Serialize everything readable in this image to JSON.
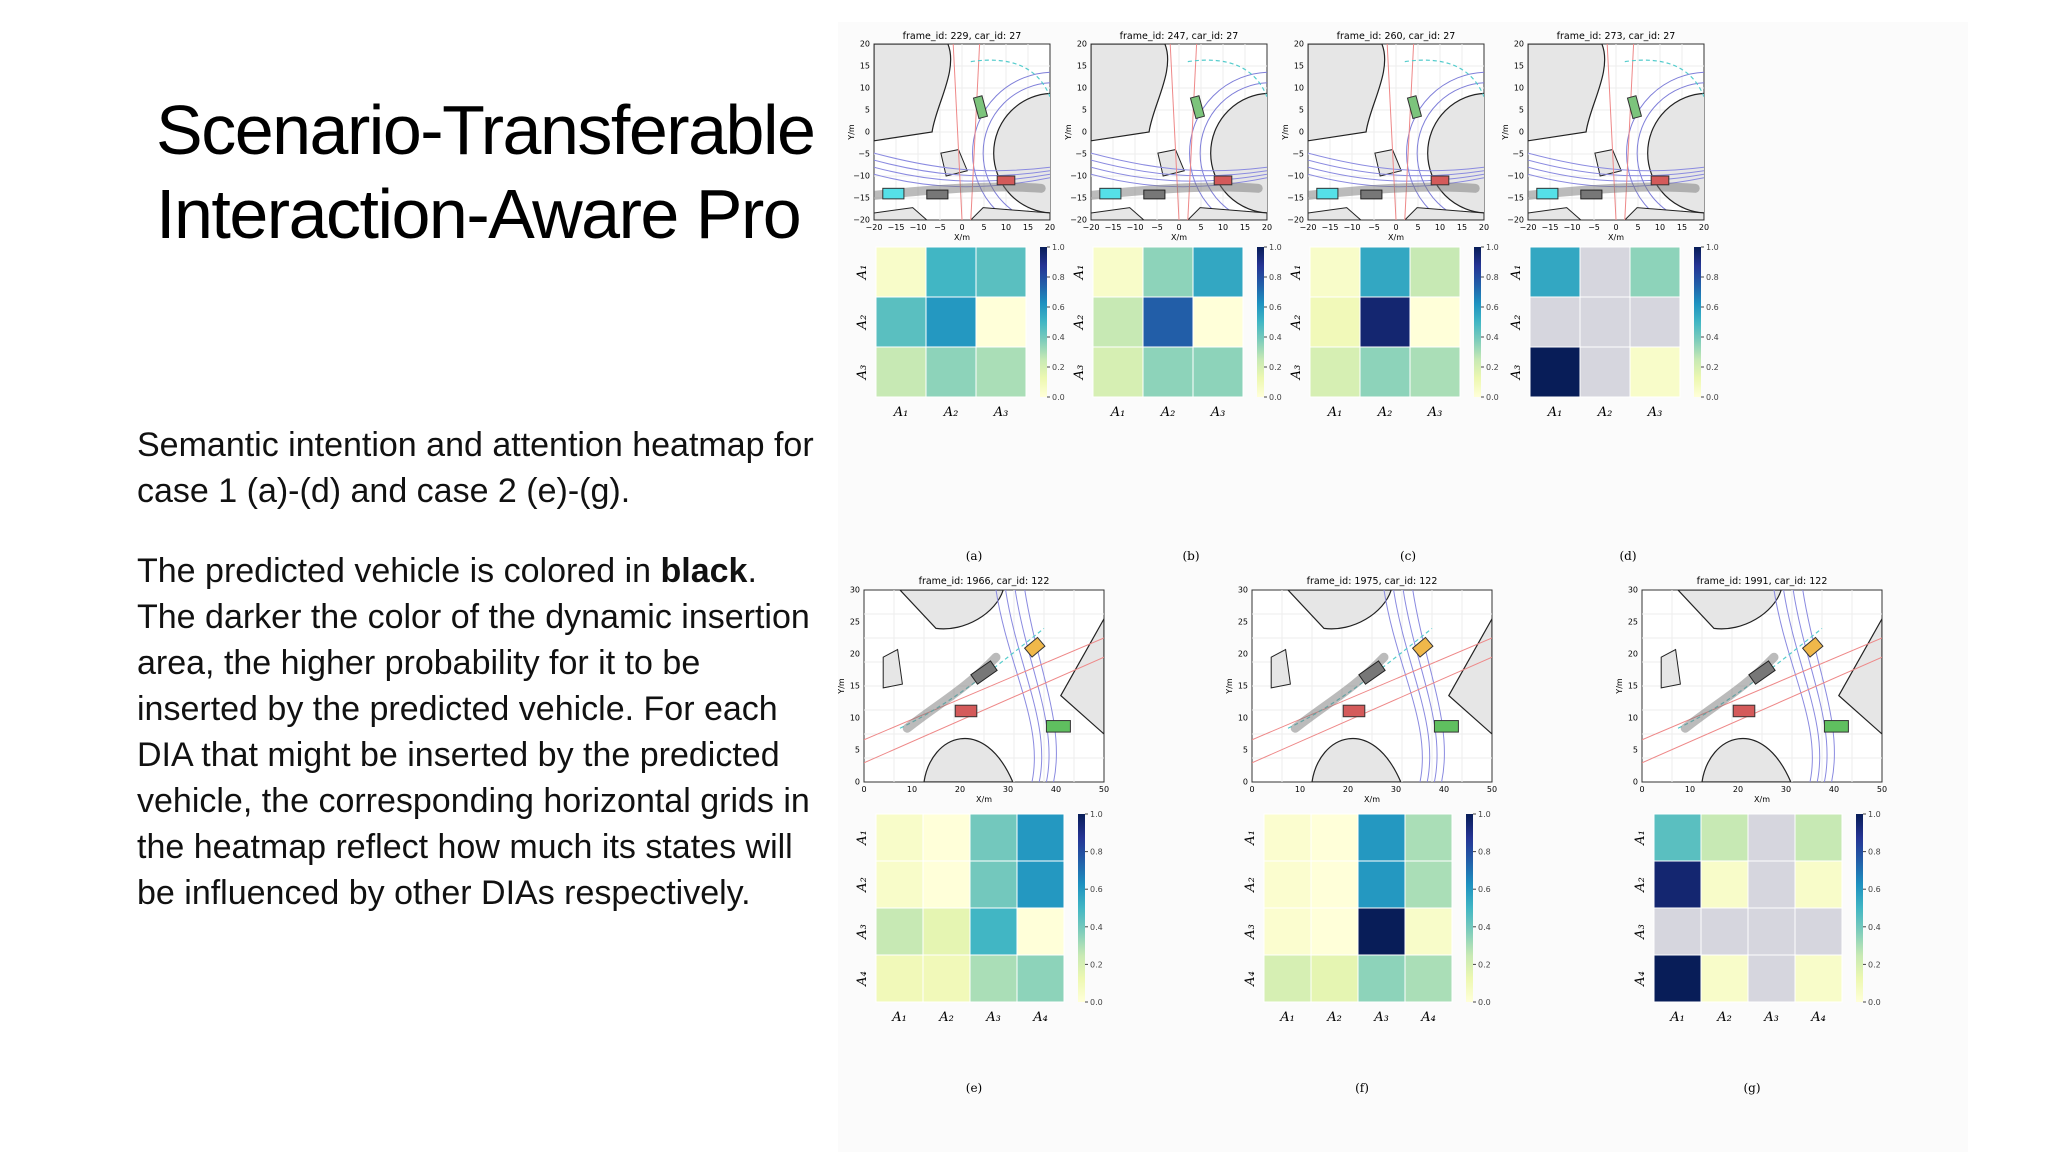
{
  "slide": {
    "title_line1": "Scenario-Transferable",
    "title_line2": "Interaction-Aware Pro",
    "para1": "Semantic intention and attention heatmap for case 1 (a)-(d) and case 2 (e)-(g).",
    "para2_a": "The predicted vehicle is colored in ",
    "para2_bold": "black",
    "para2_b": ". The darker the color of the dynamic insertion area, the higher probability for it to be inserted by the predicted vehicle. For each DIA that might be inserted by the predicted vehicle, the corresponding horizontal grids in the heatmap reflect how much its states will be influenced by other DIAs respectively."
  },
  "colorbar_ticks": [
    "0.0",
    "0.2",
    "0.4",
    "0.6",
    "0.8",
    "1.0"
  ],
  "axis_units": {
    "x": "X/m",
    "y": "Y/m"
  },
  "case1": {
    "x_ticks": [
      "−20",
      "−15",
      "−10",
      "−5",
      "0",
      "5",
      "10",
      "15",
      "20"
    ],
    "y_ticks": [
      "20",
      "15",
      "10",
      "5",
      "0",
      "−5",
      "−10",
      "−15",
      "−20"
    ],
    "panels": [
      {
        "frame_title": "frame_id: 229, car_id: 27",
        "caption": "(a)"
      },
      {
        "frame_title": "frame_id: 247, car_id: 27",
        "caption": "(b)"
      },
      {
        "frame_title": "frame_id: 260, car_id: 27",
        "caption": "(c)"
      },
      {
        "frame_title": "frame_id: 273, car_id: 27",
        "caption": "(d)"
      }
    ],
    "labels": [
      "A₁",
      "A₂",
      "A₃"
    ]
  },
  "case2": {
    "x_ticks": [
      "0",
      "10",
      "20",
      "30",
      "40",
      "50"
    ],
    "y_ticks": [
      "30",
      "25",
      "20",
      "15",
      "10",
      "5",
      "0"
    ],
    "panels": [
      {
        "frame_title": "frame_id: 1966, car_id: 122",
        "caption": "(e)"
      },
      {
        "frame_title": "frame_id: 1975, car_id: 122",
        "caption": "(f)"
      },
      {
        "frame_title": "frame_id: 1991, car_id: 122",
        "caption": "(g)"
      }
    ],
    "labels": [
      "A₁",
      "A₂",
      "A₃",
      "A₄"
    ]
  },
  "chart_data": [
    {
      "type": "heatmap",
      "caption": "(a)",
      "rows": [
        "A₁",
        "A₂",
        "A₃"
      ],
      "cols": [
        "A₁",
        "A₂",
        "A₃"
      ],
      "values": [
        [
          0.05,
          0.5,
          0.45
        ],
        [
          0.45,
          0.6,
          0.0
        ],
        [
          0.25,
          0.35,
          0.3
        ]
      ],
      "colorbar": [
        0.0,
        1.0
      ]
    },
    {
      "type": "heatmap",
      "caption": "(b)",
      "rows": [
        "A₁",
        "A₂",
        "A₃"
      ],
      "cols": [
        "A₁",
        "A₂",
        "A₃"
      ],
      "values": [
        [
          0.05,
          0.35,
          0.55
        ],
        [
          0.25,
          0.75,
          0.0
        ],
        [
          0.2,
          0.35,
          0.35
        ]
      ],
      "colorbar": [
        0.0,
        1.0
      ]
    },
    {
      "type": "heatmap",
      "caption": "(c)",
      "rows": [
        "A₁",
        "A₂",
        "A₃"
      ],
      "cols": [
        "A₁",
        "A₂",
        "A₃"
      ],
      "values": [
        [
          0.05,
          0.55,
          0.25
        ],
        [
          0.1,
          0.95,
          0.0
        ],
        [
          0.2,
          0.35,
          0.3
        ]
      ],
      "colorbar": [
        0.0,
        1.0
      ]
    },
    {
      "type": "heatmap",
      "caption": "(d)",
      "rows": [
        "A₁",
        "A₂",
        "A₃"
      ],
      "cols": [
        "A₁",
        "A₂",
        "A₃"
      ],
      "values": [
        [
          0.55,
          null,
          0.35
        ],
        [
          null,
          null,
          null
        ],
        [
          1.0,
          null,
          0.05
        ]
      ],
      "colorbar": [
        0.0,
        1.0
      ]
    },
    {
      "type": "heatmap",
      "caption": "(e)",
      "rows": [
        "A₁",
        "A₂",
        "A₃",
        "A₄"
      ],
      "cols": [
        "A₁",
        "A₂",
        "A₃",
        "A₄"
      ],
      "values": [
        [
          0.05,
          0.0,
          0.4,
          0.6
        ],
        [
          0.05,
          0.0,
          0.4,
          0.6
        ],
        [
          0.25,
          0.15,
          0.5,
          0.0
        ],
        [
          0.1,
          0.1,
          0.3,
          0.35
        ]
      ],
      "colorbar": [
        0.0,
        1.0
      ]
    },
    {
      "type": "heatmap",
      "caption": "(f)",
      "rows": [
        "A₁",
        "A₂",
        "A₃",
        "A₄"
      ],
      "cols": [
        "A₁",
        "A₂",
        "A₃",
        "A₄"
      ],
      "values": [
        [
          0.03,
          0.0,
          0.6,
          0.3
        ],
        [
          0.03,
          0.0,
          0.6,
          0.3
        ],
        [
          0.03,
          0.0,
          1.0,
          0.05
        ],
        [
          0.2,
          0.15,
          0.35,
          0.3
        ]
      ],
      "colorbar": [
        0.0,
        1.0
      ]
    },
    {
      "type": "heatmap",
      "caption": "(g)",
      "rows": [
        "A₁",
        "A₂",
        "A₃",
        "A₄"
      ],
      "cols": [
        "A₁",
        "A₂",
        "A₃",
        "A₄"
      ],
      "values": [
        [
          0.45,
          0.25,
          null,
          0.25
        ],
        [
          0.95,
          0.05,
          null,
          0.05
        ],
        [
          null,
          null,
          null,
          null
        ],
        [
          1.0,
          0.05,
          null,
          0.05
        ]
      ],
      "colorbar": [
        0.0,
        1.0
      ]
    }
  ]
}
